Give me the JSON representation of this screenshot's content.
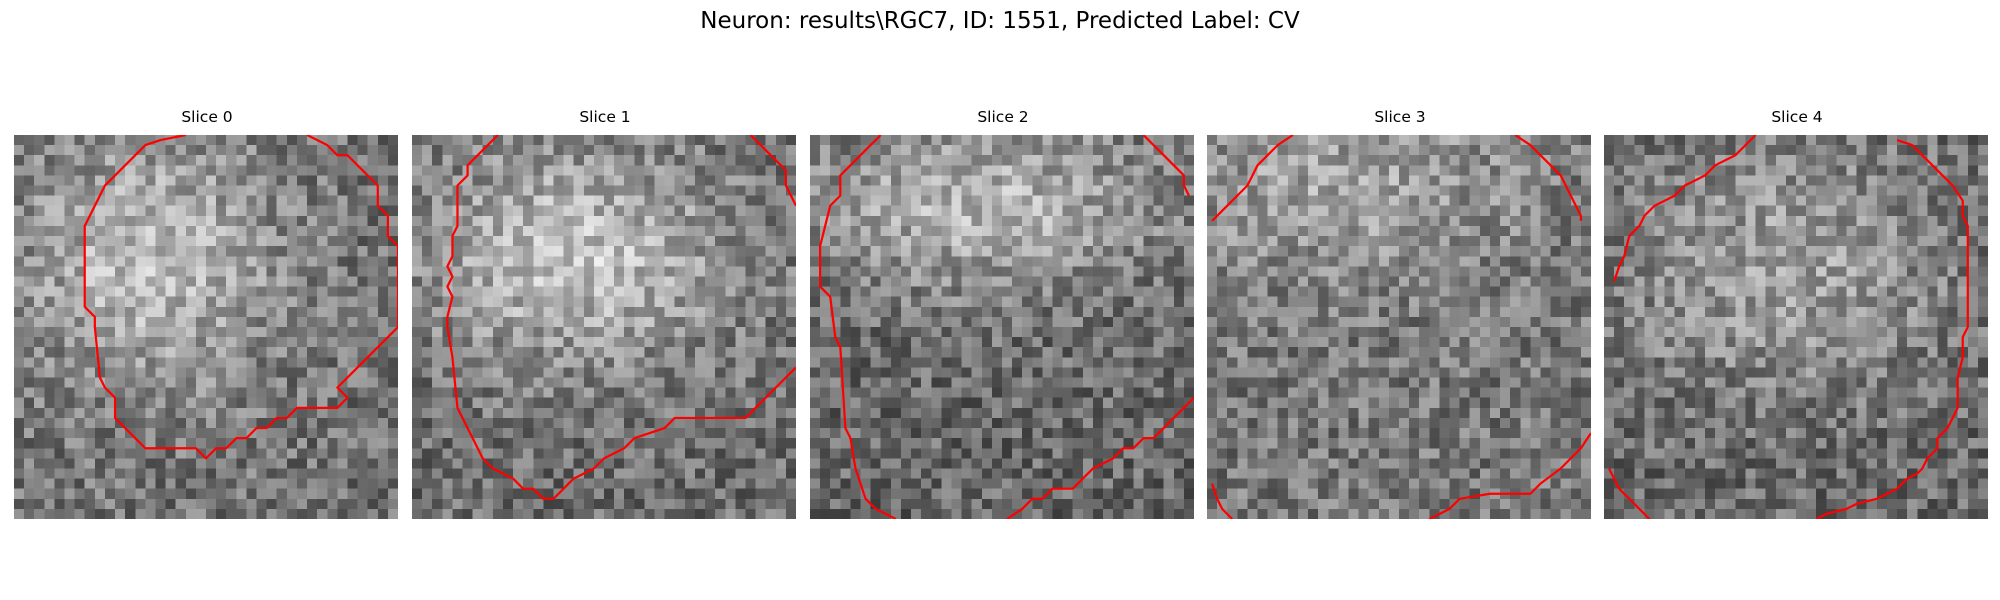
{
  "figure": {
    "title": "Neuron: results\\RGC7, ID: 1551, Predicted Label: CV"
  },
  "colors": {
    "contour": "#ff0000",
    "background": "#ffffff"
  },
  "panels": [
    {
      "title": "Slice 0",
      "center": [
        13.5,
        12.5
      ],
      "sigma": [
        8.5,
        8.5
      ],
      "base": 115,
      "amp": 75,
      "seed": 11,
      "contours": [
        [
          [
            17,
            0
          ],
          [
            14.5,
            0.5
          ],
          [
            13,
            1
          ],
          [
            12,
            2
          ],
          [
            10,
            4
          ],
          [
            9,
            5
          ],
          [
            8,
            7
          ],
          [
            7,
            9
          ],
          [
            7,
            12
          ],
          [
            7,
            17
          ],
          [
            8,
            18
          ],
          [
            8,
            19
          ],
          [
            8.5,
            24
          ],
          [
            9,
            25
          ],
          [
            10,
            26
          ],
          [
            10,
            28
          ],
          [
            11,
            29
          ],
          [
            12,
            30
          ],
          [
            13,
            31
          ],
          [
            16,
            31
          ],
          [
            18,
            31
          ],
          [
            19,
            32
          ],
          [
            20,
            31
          ],
          [
            21,
            31
          ],
          [
            22,
            30
          ],
          [
            23,
            30
          ],
          [
            24,
            29
          ],
          [
            25,
            29
          ],
          [
            26,
            28
          ],
          [
            27,
            28
          ],
          [
            28,
            27
          ],
          [
            32,
            27
          ],
          [
            33,
            26
          ],
          [
            32,
            25
          ],
          [
            34,
            23
          ],
          [
            36,
            21
          ],
          [
            38,
            19
          ],
          [
            38,
            15
          ],
          [
            38,
            11
          ],
          [
            37,
            10
          ],
          [
            37,
            8
          ],
          [
            36,
            7
          ],
          [
            36,
            5
          ],
          [
            35,
            4
          ],
          [
            34,
            3
          ],
          [
            33,
            2
          ],
          [
            32,
            2
          ],
          [
            31,
            1
          ],
          [
            30,
            0.5
          ],
          [
            29,
            0
          ]
        ]
      ]
    },
    {
      "title": "Slice 1",
      "center": [
        16,
        12
      ],
      "sigma": [
        11,
        7.5
      ],
      "base": 110,
      "amp": 85,
      "seed": 23,
      "contours": [
        [
          [
            8.5,
            0
          ],
          [
            6.5,
            2
          ],
          [
            5.5,
            3
          ],
          [
            5.5,
            4
          ],
          [
            4.5,
            5
          ],
          [
            4.5,
            9
          ],
          [
            4,
            10
          ],
          [
            4,
            12
          ],
          [
            3.5,
            13
          ],
          [
            4,
            14
          ],
          [
            3.5,
            15
          ],
          [
            4,
            16
          ],
          [
            3.5,
            18
          ],
          [
            3.5,
            19
          ],
          [
            4,
            22
          ],
          [
            4.5,
            27
          ],
          [
            5,
            28
          ],
          [
            6,
            30
          ],
          [
            7,
            32
          ],
          [
            8,
            33
          ],
          [
            10,
            34
          ],
          [
            11,
            35
          ],
          [
            12,
            35
          ],
          [
            13,
            36
          ],
          [
            14,
            36
          ],
          [
            15,
            35
          ],
          [
            16,
            34
          ],
          [
            18,
            33
          ],
          [
            19,
            32
          ],
          [
            21,
            31
          ],
          [
            22,
            30
          ],
          [
            25,
            29
          ],
          [
            26,
            28
          ],
          [
            30,
            28
          ],
          [
            33,
            28
          ],
          [
            34,
            27
          ],
          [
            35,
            26
          ],
          [
            37,
            24
          ],
          [
            38,
            23
          ]
        ],
        [
          [
            33.5,
            0
          ],
          [
            35,
            1.5
          ],
          [
            36,
            2.5
          ],
          [
            37,
            3.5
          ],
          [
            37,
            5
          ],
          [
            37.5,
            6
          ],
          [
            38,
            7
          ]
        ]
      ]
    },
    {
      "title": "Slice 2",
      "center": [
        17,
        7
      ],
      "sigma": [
        13,
        6
      ],
      "base": 105,
      "amp": 75,
      "seed": 37,
      "contours": [
        [
          [
            7,
            0
          ],
          [
            5,
            2
          ],
          [
            4,
            3
          ],
          [
            3,
            4
          ],
          [
            3,
            6
          ],
          [
            2,
            7
          ],
          [
            1.5,
            9
          ],
          [
            1,
            11
          ],
          [
            1,
            15
          ],
          [
            2,
            16
          ],
          [
            2.5,
            20
          ],
          [
            3,
            21
          ],
          [
            3.5,
            29
          ],
          [
            4,
            30
          ],
          [
            4.5,
            33
          ],
          [
            5.5,
            36
          ],
          [
            6.5,
            37
          ],
          [
            8.5,
            38
          ]
        ],
        [
          [
            33,
            0
          ],
          [
            34,
            1
          ],
          [
            35,
            2
          ],
          [
            36,
            3
          ],
          [
            37,
            4
          ],
          [
            37,
            5
          ],
          [
            37.5,
            6
          ]
        ],
        [
          [
            19.5,
            38
          ],
          [
            21,
            37
          ],
          [
            22,
            36
          ],
          [
            23,
            36
          ],
          [
            24,
            35
          ],
          [
            26,
            35
          ],
          [
            27,
            34
          ],
          [
            28,
            33
          ],
          [
            30,
            32
          ],
          [
            31,
            31
          ],
          [
            32,
            31
          ],
          [
            33,
            30
          ],
          [
            34,
            30
          ],
          [
            35,
            29
          ],
          [
            36,
            28
          ],
          [
            37,
            27
          ],
          [
            38,
            26
          ]
        ]
      ]
    },
    {
      "title": "Slice 3",
      "center": [
        14,
        5
      ],
      "sigma": [
        12,
        6
      ],
      "base": 120,
      "amp": 45,
      "seed": 51,
      "contours": [
        [
          [
            0.5,
            8.5
          ],
          [
            1.5,
            7.5
          ],
          [
            3,
            6
          ],
          [
            4,
            5
          ],
          [
            5,
            3
          ],
          [
            6,
            2
          ],
          [
            7,
            1
          ],
          [
            8.5,
            0
          ]
        ],
        [
          [
            30.5,
            0
          ],
          [
            32,
            1
          ],
          [
            33,
            2
          ],
          [
            34,
            3
          ],
          [
            35,
            4
          ],
          [
            35.5,
            5
          ],
          [
            36,
            6
          ],
          [
            36.5,
            7
          ],
          [
            37,
            8
          ],
          [
            37,
            8.5
          ]
        ],
        [
          [
            0.5,
            34.5
          ],
          [
            1,
            36
          ],
          [
            1.5,
            37
          ],
          [
            2.5,
            38
          ]
        ],
        [
          [
            22,
            38
          ],
          [
            23,
            37.5
          ],
          [
            24,
            37
          ],
          [
            25,
            36
          ],
          [
            28,
            35.5
          ],
          [
            32,
            35.5
          ],
          [
            33,
            34.5
          ],
          [
            35,
            33
          ],
          [
            36,
            32
          ],
          [
            37,
            31
          ],
          [
            38,
            29.5
          ]
        ]
      ]
    },
    {
      "title": "Slice 4",
      "center": [
        18,
        13
      ],
      "sigma": [
        12,
        9
      ],
      "base": 105,
      "amp": 55,
      "seed": 67,
      "contours": [
        [
          [
            1,
            14.5
          ],
          [
            1.5,
            13
          ],
          [
            2,
            12
          ],
          [
            2.5,
            10
          ],
          [
            3.5,
            9
          ],
          [
            4,
            8
          ],
          [
            5,
            7
          ],
          [
            6,
            6.5
          ],
          [
            7,
            6
          ],
          [
            8,
            5
          ],
          [
            9,
            4.5
          ],
          [
            10,
            4
          ],
          [
            11,
            3
          ],
          [
            12,
            2.5
          ],
          [
            13,
            2
          ],
          [
            14,
            1
          ],
          [
            15,
            0
          ]
        ],
        [
          [
            29,
            0.5
          ],
          [
            30.5,
            1
          ],
          [
            31.5,
            2
          ],
          [
            32.5,
            3
          ],
          [
            33.5,
            4
          ],
          [
            34.5,
            5
          ],
          [
            35.5,
            6.5
          ],
          [
            35.5,
            8
          ],
          [
            36,
            9
          ],
          [
            36,
            13
          ],
          [
            36,
            19
          ],
          [
            35.5,
            20
          ],
          [
            35.5,
            22
          ],
          [
            35,
            24
          ],
          [
            35,
            27
          ],
          [
            34.5,
            28
          ],
          [
            34,
            29
          ],
          [
            33,
            30
          ],
          [
            33,
            31
          ],
          [
            32,
            32
          ],
          [
            31.5,
            33
          ],
          [
            31,
            33.5
          ],
          [
            30,
            34
          ],
          [
            29,
            35
          ],
          [
            28,
            35.5
          ],
          [
            27,
            36
          ],
          [
            25,
            36.5
          ],
          [
            24,
            37
          ],
          [
            22,
            37.5
          ],
          [
            21,
            38
          ]
        ],
        [
          [
            0.5,
            33
          ],
          [
            1,
            34
          ],
          [
            1.5,
            35
          ],
          [
            2.5,
            36
          ],
          [
            3.5,
            37
          ],
          [
            4.5,
            38
          ]
        ]
      ]
    }
  ]
}
